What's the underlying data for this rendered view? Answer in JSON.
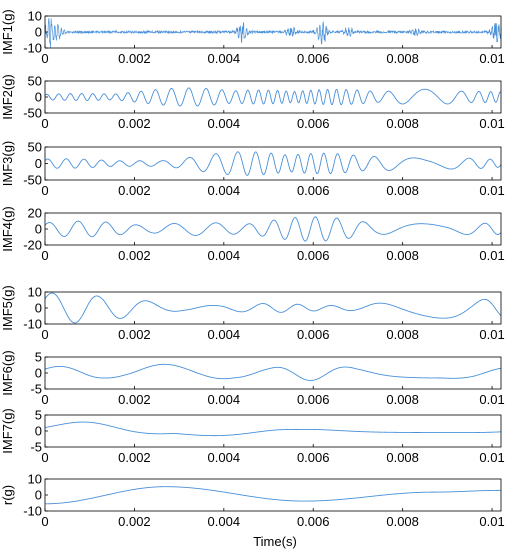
{
  "figure": {
    "xlabel": "Time(s)",
    "line_color": "#4a90d9"
  },
  "chart_data": [
    {
      "type": "line",
      "ylabel": "IMF1(g)",
      "xlim": [
        0,
        0.0102
      ],
      "ylim": [
        -10,
        10
      ],
      "xticks": [
        "0",
        "0.002",
        "0.004",
        "0.006",
        "0.008",
        "0.01"
      ],
      "xtick_values": [
        0,
        0.002,
        0.004,
        0.006,
        0.008,
        0.01
      ],
      "yticks": [
        "10",
        "0",
        "-10"
      ],
      "ytick_values": [
        10,
        0,
        -10
      ],
      "signal": {
        "kind": "bursts",
        "bursts": [
          [
            0.0001,
            10
          ],
          [
            0.0003,
            5
          ],
          [
            0.0044,
            8
          ],
          [
            0.0055,
            4
          ],
          [
            0.0062,
            9
          ],
          [
            0.0068,
            4
          ],
          [
            0.0083,
            3
          ],
          [
            0.0101,
            10
          ]
        ],
        "base": 1.5
      }
    },
    {
      "type": "line",
      "ylabel": "IMF2(g)",
      "xlim": [
        0,
        0.0102
      ],
      "ylim": [
        -50,
        50
      ],
      "xticks": [
        "0",
        "0.002",
        "0.004",
        "0.006",
        "0.008",
        "0.01"
      ],
      "xtick_values": [
        0,
        0.002,
        0.004,
        0.006,
        0.008,
        0.01
      ],
      "yticks": [
        "50",
        "0",
        "-50"
      ],
      "ytick_values": [
        50,
        0,
        -50
      ],
      "signal": {
        "kind": "osc",
        "freq": 3600,
        "amp": 22,
        "mod": [
          [
            0.0008,
            0.5
          ],
          [
            0.0032,
            1.3
          ],
          [
            0.0048,
            1.0
          ],
          [
            0.0065,
            1.1
          ],
          [
            0.0085,
            1.1
          ],
          [
            0.0097,
            0.8
          ]
        ],
        "base": 0.25
      }
    },
    {
      "type": "line",
      "ylabel": "IMF3(g)",
      "xlim": [
        0,
        0.0102
      ],
      "ylim": [
        -50,
        50
      ],
      "xticks": [
        "0",
        "0.002",
        "0.004",
        "0.006",
        "0.008",
        "0.01"
      ],
      "xtick_values": [
        0,
        0.002,
        0.004,
        0.006,
        0.008,
        0.01
      ],
      "yticks": [
        "50",
        "0",
        "-50"
      ],
      "ytick_values": [
        50,
        0,
        -50
      ],
      "signal": {
        "kind": "osc",
        "freq": 2300,
        "amp": 24,
        "mod": [
          [
            0.0004,
            0.6
          ],
          [
            0.0045,
            1.5
          ],
          [
            0.0062,
            1.3
          ],
          [
            0.0075,
            0.9
          ],
          [
            0.0092,
            0.7
          ]
        ],
        "base": 0.35
      }
    },
    {
      "type": "line",
      "ylabel": "IMF4(g)",
      "xlim": [
        0,
        0.0102
      ],
      "ylim": [
        -20,
        20
      ],
      "xticks": [
        "0",
        "0.002",
        "0.004",
        "0.006",
        "0.008",
        "0.01"
      ],
      "xtick_values": [
        0,
        0.002,
        0.004,
        0.006,
        0.008,
        0.01
      ],
      "yticks": [
        "20",
        "0",
        "-20"
      ],
      "ytick_values": [
        20,
        0,
        -20
      ],
      "signal": {
        "kind": "osc",
        "freq": 1450,
        "amp": 9,
        "mod": [
          [
            0.0008,
            1.1
          ],
          [
            0.0035,
            0.9
          ],
          [
            0.006,
            1.7
          ],
          [
            0.008,
            0.8
          ],
          [
            0.0098,
            0.8
          ]
        ],
        "base": 0.55
      }
    },
    {
      "type": "line",
      "ylabel": "IMF5(g)",
      "xlim": [
        0,
        0.0102
      ],
      "ylim": [
        -10,
        10
      ],
      "xticks": [
        "0",
        "0.002",
        "0.004",
        "0.006",
        "0.008",
        "0.01"
      ],
      "xtick_values": [
        0,
        0.002,
        0.004,
        0.006,
        0.008,
        0.01
      ],
      "yticks": [
        "10",
        "0",
        "-10"
      ],
      "ytick_values": [
        10,
        0,
        -10
      ],
      "signal": {
        "kind": "osc",
        "freq": 900,
        "amp": 4,
        "mod": [
          [
            0.0004,
            2.4
          ],
          [
            0.0012,
            1.8
          ],
          [
            0.005,
            0.7
          ],
          [
            0.0088,
            1.6
          ],
          [
            0.0101,
            1.4
          ]
        ],
        "base": 0.4
      }
    },
    {
      "type": "line",
      "ylabel": "IMF6(g)",
      "xlim": [
        0,
        0.0102
      ],
      "ylim": [
        -5,
        5
      ],
      "xticks": [
        "0",
        "0.002",
        "0.004",
        "0.006",
        "0.008",
        "0.01"
      ],
      "xtick_values": [
        0,
        0.002,
        0.004,
        0.006,
        0.008,
        0.01
      ],
      "yticks": [
        "5",
        "0",
        "-5"
      ],
      "ytick_values": [
        5,
        0,
        -5
      ],
      "signal": {
        "kind": "osc",
        "freq": 430,
        "amp": 2.6,
        "mod": [
          [
            0.0005,
            0.8
          ],
          [
            0.003,
            1.1
          ],
          [
            0.006,
            0.9
          ],
          [
            0.0095,
            0.7
          ]
        ],
        "base": 0.6
      }
    },
    {
      "type": "line",
      "ylabel": "IMF7(g)",
      "xlim": [
        0,
        0.0102
      ],
      "ylim": [
        -5,
        5
      ],
      "xticks": [
        "0",
        "0.002",
        "0.004",
        "0.006",
        "0.008",
        "0.01"
      ],
      "xtick_values": [
        0,
        0.002,
        0.004,
        0.006,
        0.008,
        0.01
      ],
      "yticks": [
        "5",
        "0",
        "-5"
      ],
      "ytick_values": [
        5,
        0,
        -5
      ],
      "signal": {
        "kind": "osc",
        "freq": 190,
        "amp": 2.5,
        "mod": [
          [
            0.0012,
            1.2
          ],
          [
            0.004,
            0.6
          ],
          [
            0.008,
            0.2
          ]
        ],
        "base": 0.2
      }
    },
    {
      "type": "line",
      "ylabel": "r(g)",
      "xlim": [
        0,
        0.0102
      ],
      "ylim": [
        -10,
        10
      ],
      "xticks": [
        "0",
        "0.002",
        "0.004",
        "0.006",
        "0.008",
        "0.01"
      ],
      "xtick_values": [
        0,
        0.002,
        0.004,
        0.006,
        0.008,
        0.01
      ],
      "yticks": [
        "10",
        "0",
        "-10"
      ],
      "ytick_values": [
        10,
        0,
        -10
      ],
      "signal": {
        "kind": "trend",
        "points": [
          [
            0,
            -5.5
          ],
          [
            0.0027,
            5.2
          ],
          [
            0.0058,
            -3.8
          ],
          [
            0.0087,
            1.8
          ],
          [
            0.0102,
            2.9
          ]
        ]
      }
    }
  ]
}
